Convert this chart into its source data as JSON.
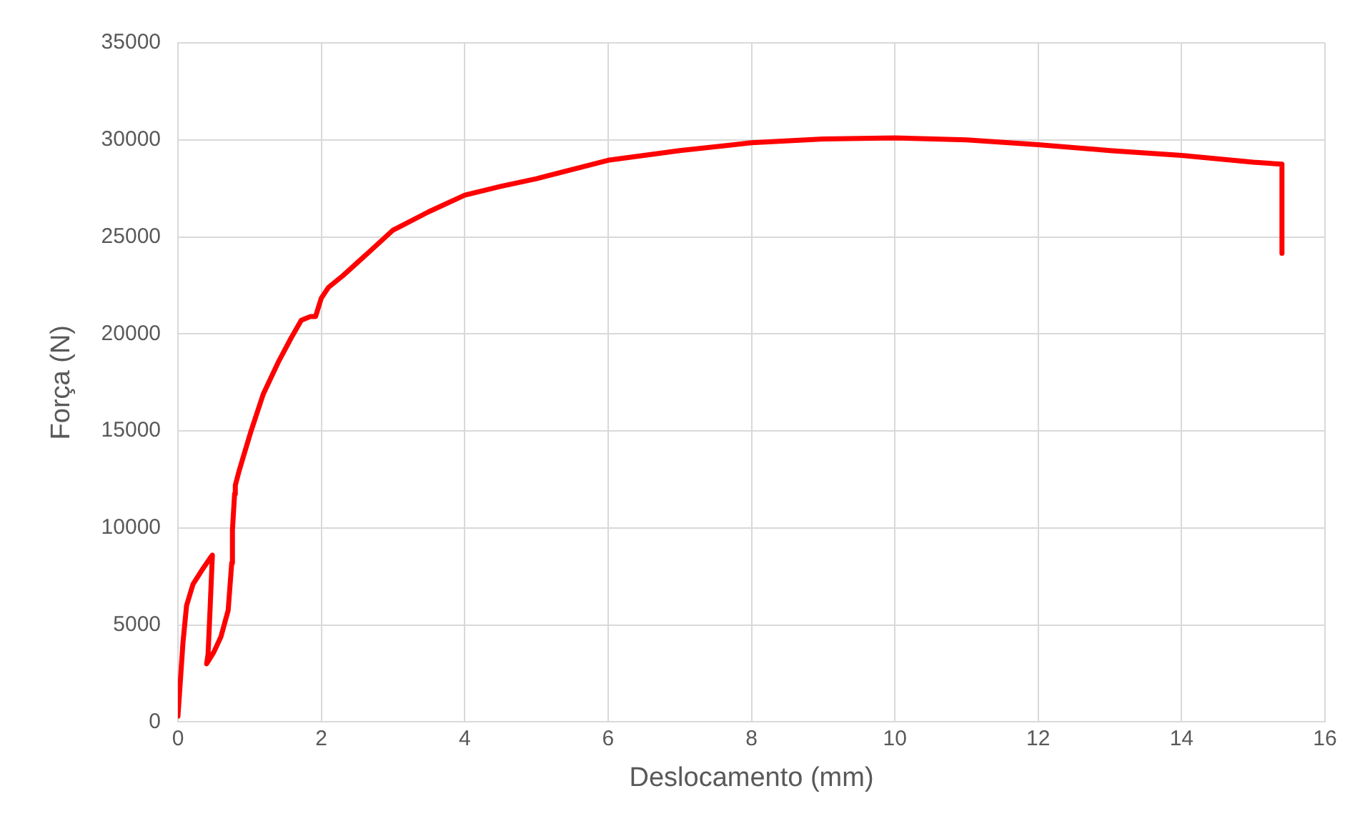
{
  "chart_data": {
    "type": "line",
    "xlabel": "Deslocamento (mm)",
    "ylabel": "Força (N)",
    "x": [
      0,
      0.07,
      0.12,
      0.21,
      0.33,
      0.46,
      0.48,
      0.45,
      0.42,
      0.4,
      0.5,
      0.6,
      0.7,
      0.75,
      0.76,
      0.79,
      0.8,
      0.85,
      0.91,
      1.02,
      1.19,
      1.4,
      1.58,
      1.72,
      1.85,
      1.92,
      2.0,
      2.1,
      2.3,
      2.6,
      3.0,
      3.5,
      4.0,
      4.5,
      5.0,
      6.0,
      7.0,
      8.0,
      9.0,
      10.0,
      11.0,
      12.0,
      13.0,
      14.0,
      15.0,
      15.4,
      15.4
    ],
    "series": [
      {
        "color": "#ff0000",
        "values": [
          300,
          4100,
          6000,
          7100,
          7800,
          8500,
          8600,
          6000,
          3500,
          3000,
          3600,
          4400,
          5750,
          8200,
          9900,
          11750,
          12200,
          12900,
          13650,
          15000,
          16900,
          18550,
          19800,
          20700,
          20900,
          20900,
          21850,
          22400,
          23000,
          24000,
          25350,
          26300,
          27150,
          27600,
          28000,
          28950,
          29450,
          29850,
          30050,
          30100,
          30000,
          29750,
          29450,
          29200,
          28850,
          28750,
          24150
        ]
      }
    ],
    "xlim": [
      0,
      16
    ],
    "xticks": [
      0,
      2,
      4,
      6,
      8,
      10,
      12,
      14,
      16
    ],
    "ylim": [
      0,
      35000
    ],
    "yticks": [
      0,
      5000,
      10000,
      15000,
      20000,
      25000,
      30000,
      35000
    ],
    "grid": true,
    "marker": "none",
    "line_style": "solid"
  }
}
